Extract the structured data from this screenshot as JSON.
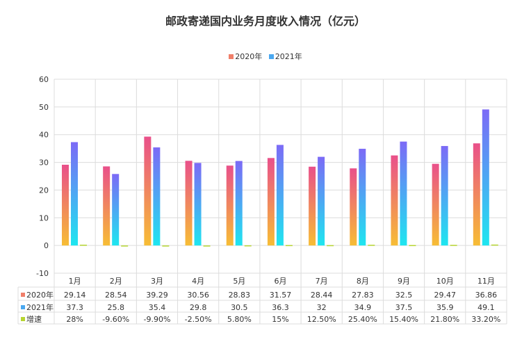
{
  "chart_data": {
    "type": "bar",
    "title": "邮政寄递国内业务月度收入情况（亿元）",
    "categories": [
      "1月",
      "2月",
      "3月",
      "4月",
      "5月",
      "6月",
      "7月",
      "8月",
      "9月",
      "10月",
      "11月"
    ],
    "ylim": [
      -10,
      60
    ],
    "yticks": [
      -10,
      0,
      10,
      20,
      30,
      40,
      50,
      60
    ],
    "grid": true,
    "legend_position": "top",
    "series": [
      {
        "name": "2020年",
        "values": [
          29.14,
          28.54,
          39.29,
          30.56,
          28.83,
          31.57,
          28.44,
          27.83,
          32.5,
          29.47,
          36.86
        ],
        "labels": [
          "29.14",
          "28.54",
          "39.29",
          "30.56",
          "28.83",
          "31.57",
          "28.44",
          "27.83",
          "32.5",
          "29.47",
          "36.86"
        ],
        "color_top": "#e9508a",
        "color_bottom": "#f7bd35"
      },
      {
        "name": "2021年",
        "values": [
          37.3,
          25.8,
          35.4,
          29.8,
          30.5,
          36.3,
          32,
          34.9,
          37.5,
          35.9,
          49.1
        ],
        "labels": [
          "37.3",
          "25.8",
          "35.4",
          "29.8",
          "30.5",
          "36.3",
          "32",
          "34.9",
          "37.5",
          "35.9",
          "49.1"
        ],
        "color_top": "#7c6af6",
        "color_bottom": "#1ee6f0"
      },
      {
        "name": "增速",
        "values": [
          0.28,
          -0.096,
          -0.099,
          -0.025,
          0.058,
          0.15,
          0.125,
          0.254,
          0.154,
          0.218,
          0.332
        ],
        "labels": [
          "28%",
          "-9.60%",
          "-9.90%",
          "-2.50%",
          "5.80%",
          "15%",
          "12.50%",
          "25.40%",
          "15.40%",
          "21.80%",
          "33.20%"
        ],
        "color": "#b7d531"
      }
    ],
    "legend_colors": [
      "#f07f6a",
      "#4aa8f0",
      "#b7d531"
    ]
  }
}
